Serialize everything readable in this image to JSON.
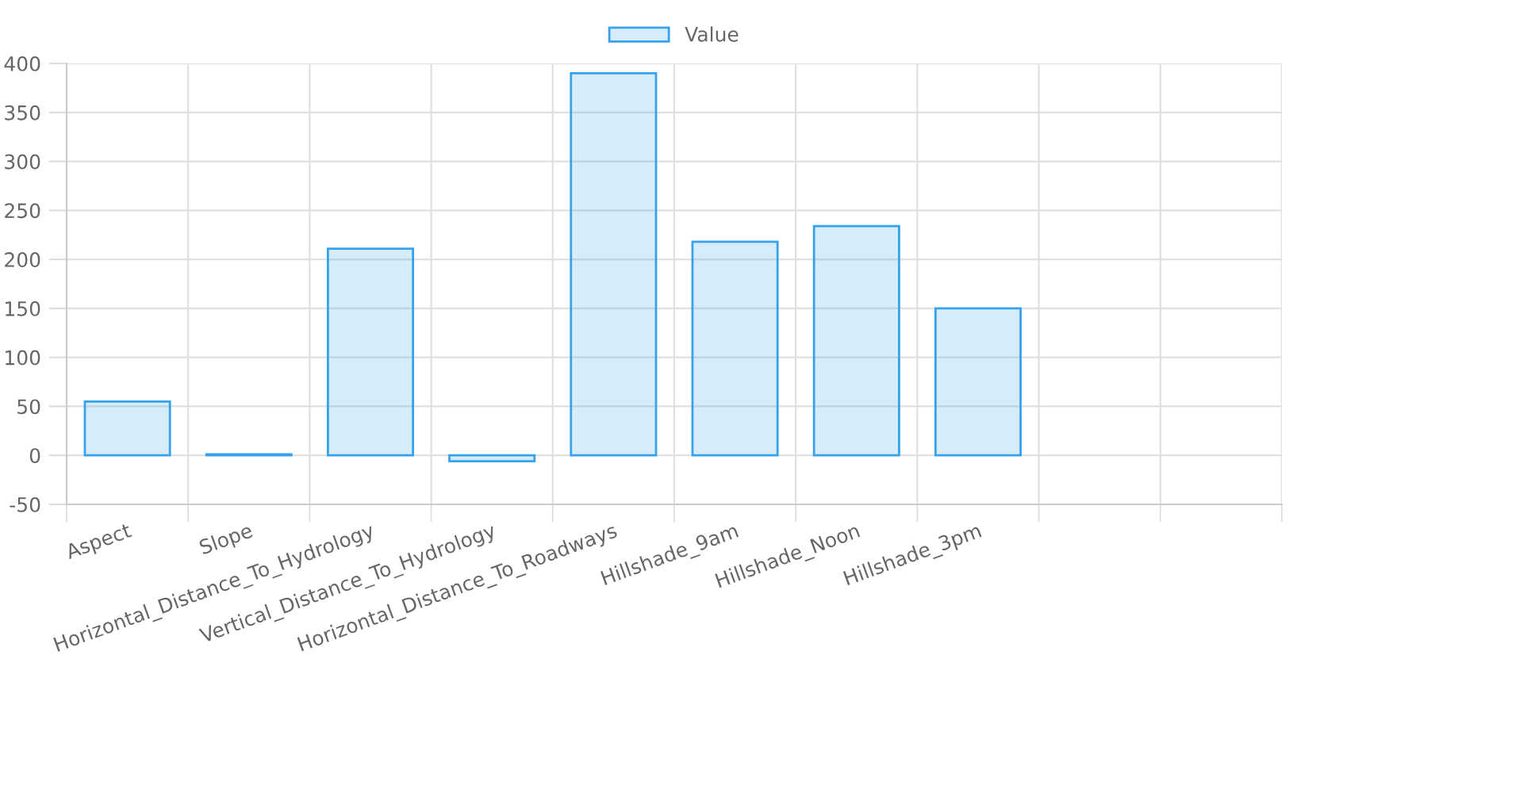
{
  "chart_data": {
    "type": "bar",
    "categories": [
      "Aspect",
      "Slope",
      "Horizontal_Distance_To_Hydrology",
      "Vertical_Distance_To_Hydrology",
      "Horizontal_Distance_To_Roadways",
      "Hillshade_9am",
      "Hillshade_Noon",
      "Hillshade_3pm",
      null,
      null
    ],
    "series": [
      {
        "name": "Value",
        "color": "#36a2eb",
        "values": [
          55,
          1,
          211,
          -6,
          390,
          218,
          234,
          150,
          null,
          null
        ]
      }
    ],
    "ylim": [
      -50,
      400
    ],
    "yticks": [
      -50,
      0,
      50,
      100,
      150,
      200,
      250,
      300,
      350,
      400
    ],
    "grid": true,
    "legend": "top"
  }
}
